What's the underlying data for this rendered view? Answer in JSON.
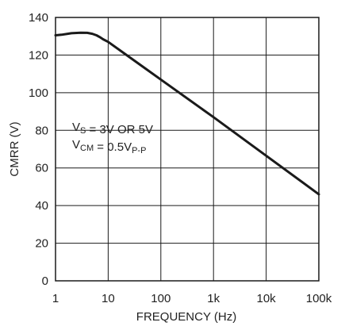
{
  "chart_data": {
    "type": "line",
    "x_scale": "log",
    "xlabel": "FREQUENCY (Hz)",
    "ylabel": "CMRR (V)",
    "xlim": [
      1,
      100000
    ],
    "ylim": [
      0,
      140
    ],
    "x_ticks": [
      1,
      10,
      100,
      1000,
      10000,
      100000
    ],
    "x_tick_labels": [
      "1",
      "10",
      "100",
      "1k",
      "10k",
      "100k"
    ],
    "y_ticks": [
      0,
      20,
      40,
      60,
      80,
      100,
      120,
      140
    ],
    "y_tick_labels": [
      "0",
      "20",
      "40",
      "60",
      "80",
      "100",
      "120",
      "140"
    ],
    "grid": true,
    "series": [
      {
        "color": "#1a1a1a",
        "x": [
          1,
          1.3,
          1.7,
          2,
          3,
          4,
          5,
          6,
          7,
          8,
          10,
          20,
          50,
          100,
          1000,
          10000,
          100000
        ],
        "y": [
          130.5,
          130.8,
          131.3,
          131.6,
          131.9,
          131.8,
          131.3,
          130.5,
          129.5,
          128.4,
          127,
          121,
          113,
          107,
          87,
          66.5,
          46
        ]
      }
    ],
    "annotations": [
      {
        "id": "vs",
        "parts": [
          {
            "text": "V",
            "sub": false
          },
          {
            "text": "S",
            "sub": true
          },
          {
            "text": " = 3V OR 5V",
            "sub": false
          }
        ]
      },
      {
        "id": "vcm",
        "parts": [
          {
            "text": "V",
            "sub": false
          },
          {
            "text": "CM",
            "sub": true
          },
          {
            "text": " = 0.5V",
            "sub": false
          },
          {
            "text": "P-P",
            "sub": true
          }
        ]
      }
    ]
  }
}
